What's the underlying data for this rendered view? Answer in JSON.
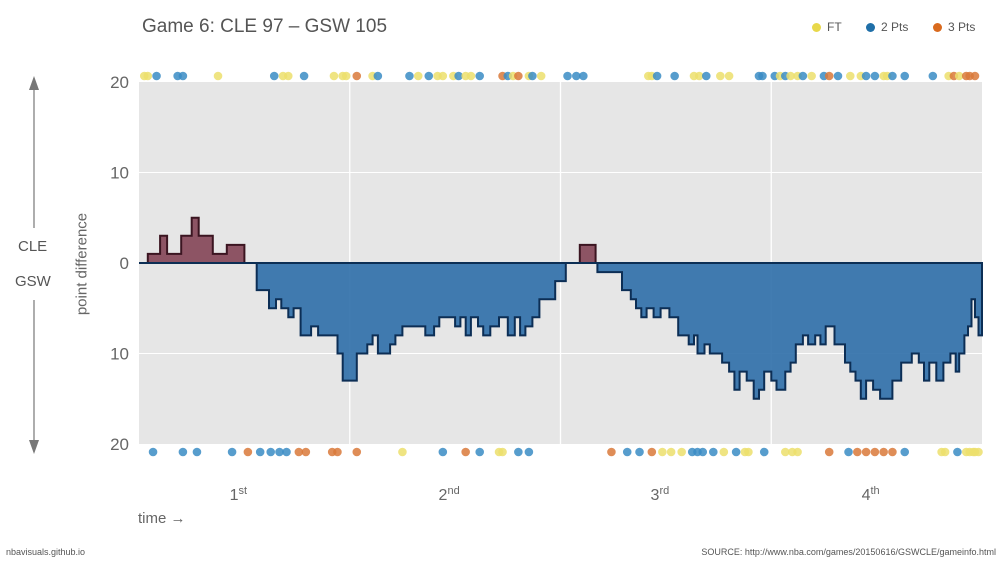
{
  "title": "Game 6: CLE 97  –  GSW 105",
  "legend": [
    {
      "label": "FT",
      "color": "#e8d84a"
    },
    {
      "label": "2 Pts",
      "color": "#1f6fa8"
    },
    {
      "label": "3 Pts",
      "color": "#d96a1e"
    }
  ],
  "side_labels": {
    "top": "CLE",
    "bottom": "GSW"
  },
  "ylabel": "point difference",
  "xlabel": "time →",
  "footer_left": "nbavisuals.github.io",
  "footer_right": "SOURCE: http://www.nba.com/games/20150616/GSWCLE/gameinfo.html",
  "chart_data": {
    "type": "area",
    "title": "Game 6: CLE 97  –  GSW 105",
    "xlabel": "time",
    "ylabel": "point difference",
    "x_unit": "game minutes",
    "xlim": [
      0,
      48
    ],
    "ylim": [
      -20,
      20
    ],
    "yticks": [
      20,
      10,
      0,
      10,
      20
    ],
    "quarters": [
      {
        "base": "1",
        "sup": "st"
      },
      {
        "base": "2",
        "sup": "nd"
      },
      {
        "base": "3",
        "sup": "rd"
      },
      {
        "base": "4",
        "sup": "th"
      }
    ],
    "series": [
      {
        "name": "CLE",
        "color": "#7d3a4c",
        "side": "positive"
      },
      {
        "name": "GSW",
        "color": "#2e6ea8",
        "side": "negative"
      }
    ],
    "margin": [
      [
        0,
        0
      ],
      [
        0.5,
        1
      ],
      [
        1.2,
        3
      ],
      [
        1.6,
        1
      ],
      [
        2.4,
        3
      ],
      [
        3,
        5
      ],
      [
        3.4,
        3
      ],
      [
        4.2,
        1
      ],
      [
        5,
        2
      ],
      [
        6,
        0
      ],
      [
        6.7,
        -3
      ],
      [
        7.4,
        -5
      ],
      [
        7.8,
        -4
      ],
      [
        8.1,
        -5
      ],
      [
        8.5,
        -6
      ],
      [
        8.8,
        -5
      ],
      [
        9.2,
        -8
      ],
      [
        9.8,
        -7
      ],
      [
        10.2,
        -8
      ],
      [
        11.3,
        -10
      ],
      [
        11.6,
        -13
      ],
      [
        12.4,
        -10
      ],
      [
        13.0,
        -9
      ],
      [
        13.3,
        -8
      ],
      [
        13.6,
        -10
      ],
      [
        14.3,
        -9
      ],
      [
        14.6,
        -8
      ],
      [
        15.0,
        -7
      ],
      [
        16.3,
        -8
      ],
      [
        16.8,
        -7
      ],
      [
        17.1,
        -6
      ],
      [
        18.0,
        -7
      ],
      [
        18.3,
        -6
      ],
      [
        18.6,
        -8
      ],
      [
        18.9,
        -6
      ],
      [
        19.3,
        -7
      ],
      [
        19.6,
        -8
      ],
      [
        20.0,
        -7
      ],
      [
        20.5,
        -6
      ],
      [
        21.0,
        -8
      ],
      [
        21.4,
        -6
      ],
      [
        21.7,
        -8
      ],
      [
        22.0,
        -7
      ],
      [
        22.4,
        -6
      ],
      [
        22.8,
        -4
      ],
      [
        23.7,
        -2
      ],
      [
        24.3,
        0
      ],
      [
        25.1,
        2
      ],
      [
        26.0,
        0
      ],
      [
        26.1,
        -1
      ],
      [
        27.0,
        -1
      ],
      [
        27.5,
        -3
      ],
      [
        28.0,
        -4
      ],
      [
        28.3,
        -5
      ],
      [
        28.6,
        -6
      ],
      [
        28.9,
        -5
      ],
      [
        29.3,
        -6
      ],
      [
        29.7,
        -5
      ],
      [
        30.2,
        -6
      ],
      [
        30.7,
        -8
      ],
      [
        31.3,
        -9
      ],
      [
        31.6,
        -8
      ],
      [
        31.8,
        -10
      ],
      [
        32.2,
        -9
      ],
      [
        32.5,
        -10
      ],
      [
        32.9,
        -10
      ],
      [
        33.2,
        -11
      ],
      [
        33.6,
        -12
      ],
      [
        33.9,
        -14
      ],
      [
        34.2,
        -12
      ],
      [
        34.6,
        -13
      ],
      [
        35.0,
        -15
      ],
      [
        35.3,
        -14
      ],
      [
        35.6,
        -12
      ],
      [
        36.0,
        -13
      ],
      [
        36.3,
        -14
      ],
      [
        36.8,
        -12
      ],
      [
        37.1,
        -11
      ],
      [
        37.4,
        -9
      ],
      [
        37.8,
        -8
      ],
      [
        38.1,
        -9
      ],
      [
        38.5,
        -8
      ],
      [
        38.8,
        -9
      ],
      [
        39.1,
        -7
      ],
      [
        39.6,
        -9
      ],
      [
        40.2,
        -11
      ],
      [
        40.5,
        -12
      ],
      [
        40.8,
        -13
      ],
      [
        41.1,
        -15
      ],
      [
        41.4,
        -13
      ],
      [
        41.8,
        -14
      ],
      [
        42.2,
        -15
      ],
      [
        42.9,
        -13
      ],
      [
        43.4,
        -11
      ],
      [
        44.0,
        -10
      ],
      [
        44.4,
        -11
      ],
      [
        44.7,
        -13
      ],
      [
        45.0,
        -11
      ],
      [
        45.4,
        -13
      ],
      [
        45.8,
        -11
      ],
      [
        46.2,
        -10
      ],
      [
        46.5,
        -12
      ],
      [
        46.7,
        -10
      ],
      [
        47.0,
        -8
      ],
      [
        47.2,
        -7
      ],
      [
        47.4,
        -4
      ],
      [
        47.6,
        -6
      ],
      [
        47.8,
        -8
      ],
      [
        48,
        -8
      ],
      [
        48,
        0
      ]
    ],
    "scores": {
      "CLE": [
        {
          "t": 0.3,
          "type": "ft"
        },
        {
          "t": 0.5,
          "type": "ft"
        },
        {
          "t": 1.0,
          "type": "2pt"
        },
        {
          "t": 2.2,
          "type": "2pt"
        },
        {
          "t": 2.5,
          "type": "2pt"
        },
        {
          "t": 4.5,
          "type": "ft"
        },
        {
          "t": 7.7,
          "type": "2pt"
        },
        {
          "t": 8.2,
          "type": "ft"
        },
        {
          "t": 8.5,
          "type": "ft"
        },
        {
          "t": 9.4,
          "type": "2pt"
        },
        {
          "t": 11.1,
          "type": "ft"
        },
        {
          "t": 11.6,
          "type": "ft"
        },
        {
          "t": 11.8,
          "type": "ft"
        },
        {
          "t": 12.4,
          "type": "3pt"
        },
        {
          "t": 13.3,
          "type": "ft"
        },
        {
          "t": 13.6,
          "type": "2pt"
        },
        {
          "t": 15.4,
          "type": "2pt"
        },
        {
          "t": 15.9,
          "type": "ft"
        },
        {
          "t": 16.5,
          "type": "2pt"
        },
        {
          "t": 17.0,
          "type": "ft"
        },
        {
          "t": 17.3,
          "type": "ft"
        },
        {
          "t": 17.9,
          "type": "ft"
        },
        {
          "t": 18.2,
          "type": "2pt"
        },
        {
          "t": 18.6,
          "type": "ft"
        },
        {
          "t": 18.9,
          "type": "ft"
        },
        {
          "t": 19.4,
          "type": "2pt"
        },
        {
          "t": 20.7,
          "type": "3pt"
        },
        {
          "t": 21.0,
          "type": "2pt"
        },
        {
          "t": 21.3,
          "type": "ft"
        },
        {
          "t": 21.6,
          "type": "3pt"
        },
        {
          "t": 22.2,
          "type": "ft"
        },
        {
          "t": 22.4,
          "type": "2pt"
        },
        {
          "t": 22.9,
          "type": "ft"
        },
        {
          "t": 24.4,
          "type": "2pt"
        },
        {
          "t": 24.9,
          "type": "2pt"
        },
        {
          "t": 25.3,
          "type": "2pt"
        },
        {
          "t": 29.0,
          "type": "ft"
        },
        {
          "t": 29.2,
          "type": "ft"
        },
        {
          "t": 29.5,
          "type": "2pt"
        },
        {
          "t": 30.5,
          "type": "2pt"
        },
        {
          "t": 31.6,
          "type": "ft"
        },
        {
          "t": 31.9,
          "type": "ft"
        },
        {
          "t": 32.3,
          "type": "2pt"
        },
        {
          "t": 33.1,
          "type": "ft"
        },
        {
          "t": 33.6,
          "type": "ft"
        },
        {
          "t": 35.3,
          "type": "2pt"
        },
        {
          "t": 35.5,
          "type": "2pt"
        },
        {
          "t": 36.2,
          "type": "2pt"
        },
        {
          "t": 36.5,
          "type": "ft"
        },
        {
          "t": 36.8,
          "type": "2pt"
        },
        {
          "t": 37.1,
          "type": "ft"
        },
        {
          "t": 37.5,
          "type": "ft"
        },
        {
          "t": 37.8,
          "type": "2pt"
        },
        {
          "t": 38.3,
          "type": "ft"
        },
        {
          "t": 39.0,
          "type": "2pt"
        },
        {
          "t": 39.3,
          "type": "3pt"
        },
        {
          "t": 39.8,
          "type": "2pt"
        },
        {
          "t": 40.5,
          "type": "ft"
        },
        {
          "t": 41.1,
          "type": "ft"
        },
        {
          "t": 41.4,
          "type": "2pt"
        },
        {
          "t": 41.9,
          "type": "2pt"
        },
        {
          "t": 42.4,
          "type": "ft"
        },
        {
          "t": 42.6,
          "type": "ft"
        },
        {
          "t": 42.9,
          "type": "2pt"
        },
        {
          "t": 43.6,
          "type": "2pt"
        },
        {
          "t": 45.2,
          "type": "2pt"
        },
        {
          "t": 46.1,
          "type": "ft"
        },
        {
          "t": 46.4,
          "type": "3pt"
        },
        {
          "t": 46.7,
          "type": "ft"
        },
        {
          "t": 47.1,
          "type": "3pt"
        },
        {
          "t": 47.3,
          "type": "3pt"
        },
        {
          "t": 47.6,
          "type": "3pt"
        }
      ],
      "GSW": [
        {
          "t": 0.8,
          "type": "2pt"
        },
        {
          "t": 2.5,
          "type": "2pt"
        },
        {
          "t": 3.3,
          "type": "2pt"
        },
        {
          "t": 5.3,
          "type": "2pt"
        },
        {
          "t": 6.2,
          "type": "3pt"
        },
        {
          "t": 6.9,
          "type": "2pt"
        },
        {
          "t": 7.5,
          "type": "2pt"
        },
        {
          "t": 8.0,
          "type": "2pt"
        },
        {
          "t": 8.4,
          "type": "2pt"
        },
        {
          "t": 9.1,
          "type": "3pt"
        },
        {
          "t": 9.5,
          "type": "3pt"
        },
        {
          "t": 11.0,
          "type": "3pt"
        },
        {
          "t": 11.3,
          "type": "3pt"
        },
        {
          "t": 12.4,
          "type": "3pt"
        },
        {
          "t": 15.0,
          "type": "ft"
        },
        {
          "t": 17.3,
          "type": "2pt"
        },
        {
          "t": 18.6,
          "type": "3pt"
        },
        {
          "t": 19.4,
          "type": "2pt"
        },
        {
          "t": 20.5,
          "type": "ft"
        },
        {
          "t": 20.7,
          "type": "ft"
        },
        {
          "t": 21.6,
          "type": "2pt"
        },
        {
          "t": 22.2,
          "type": "2pt"
        },
        {
          "t": 26.9,
          "type": "3pt"
        },
        {
          "t": 27.8,
          "type": "2pt"
        },
        {
          "t": 28.5,
          "type": "2pt"
        },
        {
          "t": 29.2,
          "type": "3pt"
        },
        {
          "t": 29.8,
          "type": "ft"
        },
        {
          "t": 30.3,
          "type": "ft"
        },
        {
          "t": 30.9,
          "type": "ft"
        },
        {
          "t": 31.5,
          "type": "2pt"
        },
        {
          "t": 31.8,
          "type": "2pt"
        },
        {
          "t": 32.1,
          "type": "2pt"
        },
        {
          "t": 32.7,
          "type": "2pt"
        },
        {
          "t": 33.3,
          "type": "ft"
        },
        {
          "t": 34.0,
          "type": "2pt"
        },
        {
          "t": 34.5,
          "type": "ft"
        },
        {
          "t": 34.7,
          "type": "ft"
        },
        {
          "t": 35.6,
          "type": "2pt"
        },
        {
          "t": 36.8,
          "type": "ft"
        },
        {
          "t": 37.2,
          "type": "ft"
        },
        {
          "t": 37.5,
          "type": "ft"
        },
        {
          "t": 39.3,
          "type": "3pt"
        },
        {
          "t": 40.4,
          "type": "2pt"
        },
        {
          "t": 40.9,
          "type": "3pt"
        },
        {
          "t": 41.4,
          "type": "3pt"
        },
        {
          "t": 41.9,
          "type": "3pt"
        },
        {
          "t": 42.4,
          "type": "3pt"
        },
        {
          "t": 42.9,
          "type": "3pt"
        },
        {
          "t": 43.6,
          "type": "2pt"
        },
        {
          "t": 45.7,
          "type": "ft"
        },
        {
          "t": 45.9,
          "type": "ft"
        },
        {
          "t": 46.6,
          "type": "2pt"
        },
        {
          "t": 47.1,
          "type": "ft"
        },
        {
          "t": 47.3,
          "type": "ft"
        },
        {
          "t": 47.5,
          "type": "ft"
        },
        {
          "t": 47.6,
          "type": "ft"
        },
        {
          "t": 47.8,
          "type": "ft"
        }
      ]
    }
  }
}
